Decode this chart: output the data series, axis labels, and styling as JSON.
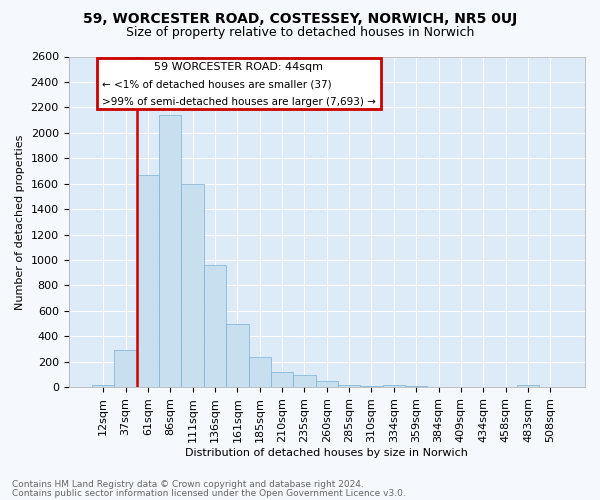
{
  "title1": "59, WORCESTER ROAD, COSTESSEY, NORWICH, NR5 0UJ",
  "title2": "Size of property relative to detached houses in Norwich",
  "xlabel": "Distribution of detached houses by size in Norwich",
  "ylabel": "Number of detached properties",
  "bar_labels": [
    "12sqm",
    "37sqm",
    "61sqm",
    "86sqm",
    "111sqm",
    "136sqm",
    "161sqm",
    "185sqm",
    "210sqm",
    "235sqm",
    "260sqm",
    "285sqm",
    "310sqm",
    "334sqm",
    "359sqm",
    "384sqm",
    "409sqm",
    "434sqm",
    "458sqm",
    "483sqm",
    "508sqm"
  ],
  "bar_values": [
    20,
    290,
    1670,
    2140,
    1600,
    960,
    500,
    235,
    120,
    95,
    45,
    18,
    10,
    15,
    8,
    5,
    5,
    5,
    4,
    20,
    3
  ],
  "bar_color": "#c8dff0",
  "bar_edge_color": "#7bafd4",
  "red_line_x": 1.5,
  "red_color": "#cc0000",
  "annotation_title": "59 WORCESTER ROAD: 44sqm",
  "annotation_line1": "← <1% of detached houses are smaller (37)",
  "annotation_line2": ">99% of semi-detached houses are larger (7,693) →",
  "ylim_max": 2600,
  "ytick_step": 200,
  "footer1": "Contains HM Land Registry data © Crown copyright and database right 2024.",
  "footer2": "Contains public sector information licensed under the Open Government Licence v3.0.",
  "plot_bg_color": "#ddeaf7",
  "fig_bg_color": "#f5f8fc",
  "title1_fontsize": 10,
  "title2_fontsize": 9,
  "axis_fontsize": 8,
  "footer_fontsize": 6.5
}
